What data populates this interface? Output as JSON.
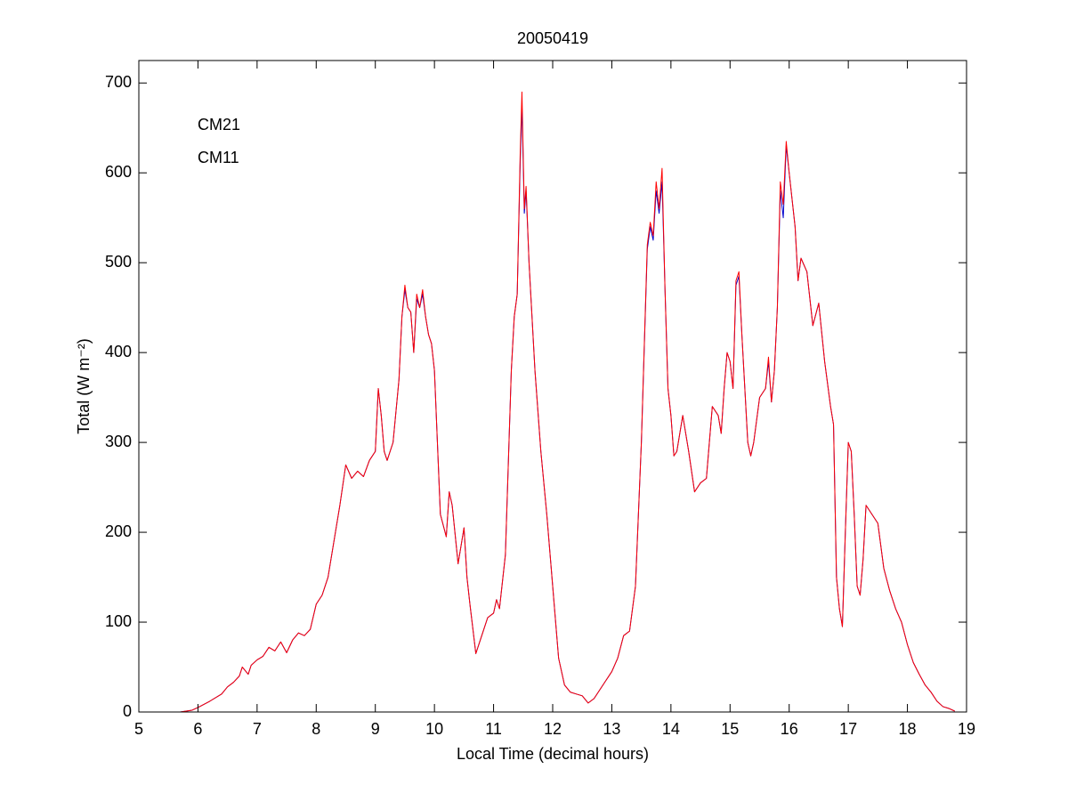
{
  "chart_data": {
    "type": "line",
    "title": "20050419",
    "xlabel": "Local Time (decimal hours)",
    "ylabel": "Total (W m⁻²)",
    "xlim": [
      5,
      19
    ],
    "ylim": [
      0,
      725
    ],
    "xticks": [
      5,
      6,
      7,
      8,
      9,
      10,
      11,
      12,
      13,
      14,
      15,
      16,
      17,
      18,
      19
    ],
    "yticks": [
      0,
      100,
      200,
      300,
      400,
      500,
      600,
      700
    ],
    "legend": "upper left",
    "x": [
      5.7,
      5.9,
      6.0,
      6.2,
      6.4,
      6.5,
      6.6,
      6.7,
      6.75,
      6.85,
      6.9,
      7.0,
      7.1,
      7.2,
      7.3,
      7.4,
      7.5,
      7.6,
      7.7,
      7.8,
      7.9,
      8.0,
      8.1,
      8.2,
      8.3,
      8.4,
      8.5,
      8.6,
      8.7,
      8.8,
      8.9,
      9.0,
      9.05,
      9.1,
      9.15,
      9.2,
      9.3,
      9.4,
      9.45,
      9.5,
      9.55,
      9.6,
      9.65,
      9.7,
      9.75,
      9.8,
      9.85,
      9.9,
      9.95,
      10.0,
      10.05,
      10.1,
      10.2,
      10.25,
      10.3,
      10.4,
      10.5,
      10.55,
      10.6,
      10.7,
      10.8,
      10.9,
      11.0,
      11.05,
      11.1,
      11.2,
      11.3,
      11.35,
      11.4,
      11.45,
      11.48,
      11.52,
      11.55,
      11.6,
      11.7,
      11.8,
      11.9,
      12.0,
      12.1,
      12.2,
      12.3,
      12.4,
      12.5,
      12.6,
      12.7,
      12.8,
      12.9,
      13.0,
      13.1,
      13.2,
      13.3,
      13.4,
      13.5,
      13.6,
      13.65,
      13.7,
      13.75,
      13.8,
      13.85,
      13.9,
      13.95,
      14.0,
      14.05,
      14.1,
      14.2,
      14.3,
      14.4,
      14.5,
      14.6,
      14.7,
      14.8,
      14.85,
      14.9,
      14.95,
      15.0,
      15.05,
      15.1,
      15.15,
      15.2,
      15.3,
      15.35,
      15.4,
      15.5,
      15.6,
      15.65,
      15.7,
      15.75,
      15.8,
      15.85,
      15.9,
      15.95,
      16.0,
      16.1,
      16.15,
      16.2,
      16.3,
      16.4,
      16.5,
      16.6,
      16.7,
      16.75,
      16.8,
      16.85,
      16.9,
      16.95,
      17.0,
      17.05,
      17.1,
      17.15,
      17.2,
      17.25,
      17.3,
      17.4,
      17.5,
      17.6,
      17.7,
      17.8,
      17.9,
      18.0,
      18.1,
      18.2,
      18.3,
      18.4,
      18.5,
      18.6,
      18.7,
      18.8
    ],
    "series": [
      {
        "name": "CM21",
        "color": "#0000cc",
        "values": [
          0,
          2,
          5,
          12,
          20,
          28,
          33,
          40,
          50,
          42,
          52,
          58,
          62,
          72,
          68,
          78,
          66,
          80,
          88,
          85,
          92,
          120,
          130,
          150,
          190,
          230,
          275,
          260,
          268,
          262,
          280,
          290,
          360,
          330,
          290,
          280,
          300,
          370,
          440,
          470,
          450,
          445,
          400,
          460,
          450,
          465,
          440,
          420,
          410,
          380,
          300,
          220,
          195,
          245,
          230,
          165,
          205,
          150,
          120,
          65,
          85,
          105,
          110,
          125,
          115,
          175,
          380,
          440,
          465,
          610,
          675,
          555,
          580,
          500,
          380,
          290,
          220,
          140,
          60,
          30,
          22,
          20,
          18,
          10,
          15,
          25,
          35,
          45,
          60,
          85,
          90,
          140,
          300,
          515,
          540,
          525,
          580,
          555,
          590,
          470,
          360,
          330,
          285,
          290,
          330,
          290,
          245,
          255,
          260,
          340,
          330,
          310,
          360,
          400,
          390,
          360,
          475,
          485,
          420,
          300,
          285,
          300,
          350,
          360,
          390,
          345,
          380,
          450,
          580,
          550,
          630,
          600,
          540,
          480,
          505,
          490,
          430,
          455,
          390,
          340,
          320,
          150,
          115,
          95,
          200,
          300,
          290,
          220,
          140,
          130,
          170,
          230,
          220,
          210,
          160,
          135,
          115,
          100,
          75,
          55,
          42,
          30,
          22,
          12,
          6,
          4,
          1
        ]
      },
      {
        "name": "CM11",
        "color": "#ff0000",
        "values": [
          0,
          2,
          5,
          12,
          20,
          28,
          33,
          40,
          50,
          42,
          52,
          58,
          62,
          72,
          68,
          78,
          66,
          80,
          88,
          85,
          92,
          120,
          130,
          150,
          190,
          230,
          275,
          260,
          268,
          262,
          280,
          290,
          360,
          330,
          290,
          280,
          300,
          370,
          440,
          475,
          450,
          445,
          400,
          465,
          450,
          470,
          440,
          420,
          410,
          380,
          300,
          220,
          195,
          245,
          230,
          165,
          205,
          150,
          120,
          65,
          85,
          105,
          110,
          125,
          115,
          175,
          380,
          440,
          465,
          620,
          690,
          560,
          585,
          500,
          380,
          290,
          220,
          140,
          60,
          30,
          22,
          20,
          18,
          10,
          15,
          25,
          35,
          45,
          60,
          85,
          90,
          140,
          300,
          520,
          545,
          530,
          590,
          560,
          605,
          470,
          360,
          330,
          285,
          290,
          330,
          290,
          245,
          255,
          260,
          340,
          330,
          310,
          360,
          400,
          390,
          360,
          480,
          490,
          420,
          300,
          285,
          300,
          350,
          360,
          395,
          345,
          380,
          450,
          590,
          565,
          635,
          600,
          540,
          480,
          505,
          490,
          430,
          455,
          390,
          340,
          320,
          150,
          115,
          95,
          200,
          300,
          290,
          220,
          140,
          130,
          170,
          230,
          220,
          210,
          160,
          135,
          115,
          100,
          75,
          55,
          42,
          30,
          22,
          12,
          6,
          4,
          1
        ]
      }
    ]
  }
}
